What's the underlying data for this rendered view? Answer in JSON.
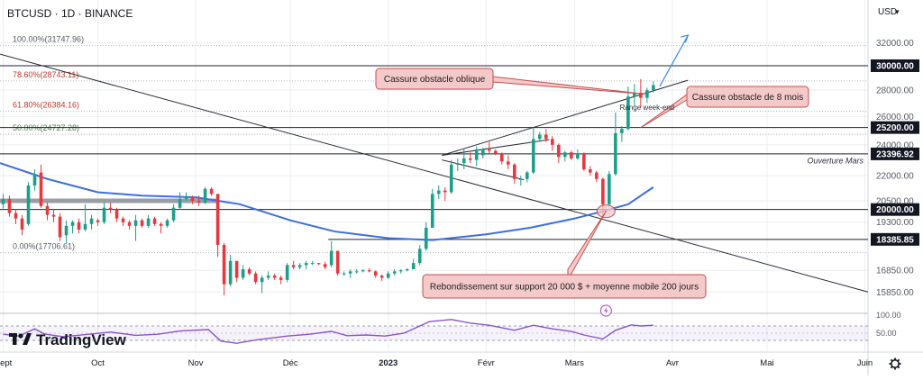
{
  "header": {
    "symbol": "BTCUSD",
    "timeframe": "1D",
    "exchange": "BINANCE",
    "title": "BTCUSD · 1D · BINANCE"
  },
  "toolbar": {
    "currency": "USD",
    "currency_caret": "▾",
    "settings_icon": "gear-icon"
  },
  "logo": {
    "text": "TradingView",
    "icon": "tradingview-logo-icon"
  },
  "colors": {
    "up": "#1e9e8a",
    "down": "#e5393f",
    "ma200": "#3d6fe0",
    "rsi": "#8a55c8",
    "callout_fill": "#f4c9c9",
    "callout_border": "#c45050",
    "arrow": "#3b8be8",
    "background": "#ffffff",
    "grid": "#eceef2"
  },
  "chart_data": {
    "type": "candlestick",
    "title": "BTCUSD · 1D · BINANCE",
    "y_unit": "USD",
    "y_axis_scale": "log",
    "y_ticks": [
      32000,
      30000,
      28000,
      26000,
      25200,
      24000,
      23396.92,
      22000,
      20500,
      20000,
      19300,
      18385.85,
      16850,
      15850
    ],
    "y_tick_labels": [
      "32000.00",
      "30000.00",
      "28000.00",
      "26000.00",
      "25200.00",
      "24000.00",
      "23396.92",
      "22000.00",
      "20500.00",
      "20000.00",
      "19300.00",
      "18385.85",
      "16850.00",
      "15850.00"
    ],
    "highlighted_levels": [
      30000,
      25200,
      23396.92,
      20000,
      18385.85
    ],
    "highlighted_level_labels": [
      "30000.00",
      "25200.00",
      "23396.92",
      "20000.00",
      "18385.85"
    ],
    "x_tick_labels": [
      "Sept",
      "Oct",
      "Nov",
      "Déc",
      "2023",
      "Févr",
      "Mars",
      "Avr",
      "Mai",
      "Juin"
    ],
    "x_tick_dates": [
      "2022-09-01",
      "2022-10-01",
      "2022-11-01",
      "2022-12-01",
      "2023-01-01",
      "2023-02-01",
      "2023-03-01",
      "2023-04-01",
      "2023-05-01",
      "2023-06-01"
    ],
    "x_range": [
      "2022-08-31",
      "2023-06-02"
    ],
    "candles": [
      [
        "2022-09-01",
        20300,
        20900,
        20050,
        20600
      ],
      [
        "2022-09-03",
        20600,
        20800,
        19600,
        19800
      ],
      [
        "2022-09-05",
        19800,
        20000,
        19200,
        19500
      ],
      [
        "2022-09-07",
        19500,
        19700,
        18600,
        18900
      ],
      [
        "2022-09-09",
        19200,
        21600,
        19100,
        21400
      ],
      [
        "2022-09-11",
        21400,
        22400,
        21100,
        22100
      ],
      [
        "2022-09-13",
        22200,
        22700,
        20100,
        20200
      ],
      [
        "2022-09-15",
        20200,
        20400,
        19400,
        19700
      ],
      [
        "2022-09-17",
        19700,
        20000,
        19300,
        19600
      ],
      [
        "2022-09-19",
        19600,
        19800,
        18300,
        18500
      ],
      [
        "2022-09-21",
        18600,
        19400,
        18200,
        19100
      ],
      [
        "2022-09-23",
        19100,
        19400,
        18700,
        19300
      ],
      [
        "2022-09-25",
        19300,
        19500,
        18700,
        18900
      ],
      [
        "2022-09-27",
        18900,
        20300,
        18800,
        19200
      ],
      [
        "2022-09-29",
        19200,
        19700,
        18900,
        19500
      ],
      [
        "2022-10-01",
        19400,
        19500,
        19100,
        19300
      ],
      [
        "2022-10-03",
        19300,
        20400,
        19200,
        20100
      ],
      [
        "2022-10-05",
        20100,
        20400,
        19800,
        20000
      ],
      [
        "2022-10-07",
        20000,
        20100,
        19300,
        19500
      ],
      [
        "2022-10-09",
        19500,
        19600,
        19100,
        19300
      ],
      [
        "2022-10-11",
        19300,
        19400,
        18900,
        19100
      ],
      [
        "2022-10-13",
        19100,
        19700,
        18300,
        19400
      ],
      [
        "2022-10-15",
        19400,
        19500,
        19000,
        19100
      ],
      [
        "2022-10-17",
        19100,
        19700,
        19000,
        19500
      ],
      [
        "2022-10-19",
        19500,
        19600,
        19100,
        19200
      ],
      [
        "2022-10-21",
        19200,
        19300,
        18700,
        19100
      ],
      [
        "2022-10-23",
        19100,
        19500,
        19000,
        19400
      ],
      [
        "2022-10-25",
        19400,
        20300,
        19300,
        20100
      ],
      [
        "2022-10-27",
        20100,
        21000,
        20000,
        20600
      ],
      [
        "2022-10-29",
        20600,
        21000,
        20500,
        20700
      ],
      [
        "2022-10-31",
        20700,
        20800,
        20300,
        20500
      ],
      [
        "2022-11-02",
        20500,
        20800,
        20200,
        20400
      ],
      [
        "2022-11-04",
        20400,
        21300,
        20300,
        21200
      ],
      [
        "2022-11-06",
        21200,
        21300,
        20800,
        20900
      ],
      [
        "2022-11-08",
        20900,
        20900,
        17500,
        18100
      ],
      [
        "2022-11-10",
        18100,
        18200,
        15700,
        16200
      ],
      [
        "2022-11-12",
        16200,
        17600,
        16100,
        17300
      ],
      [
        "2022-11-14",
        17300,
        17200,
        16300,
        16500
      ],
      [
        "2022-11-16",
        16500,
        17100,
        16400,
        16900
      ],
      [
        "2022-11-18",
        16900,
        17000,
        16600,
        16700
      ],
      [
        "2022-11-20",
        16700,
        16800,
        16200,
        16300
      ],
      [
        "2022-11-22",
        16300,
        16600,
        15800,
        16500
      ],
      [
        "2022-11-24",
        16500,
        16800,
        16400,
        16600
      ],
      [
        "2022-11-26",
        16600,
        16700,
        16400,
        16500
      ],
      [
        "2022-11-28",
        16500,
        16600,
        16200,
        16400
      ],
      [
        "2022-11-30",
        16400,
        17200,
        16300,
        17100
      ],
      [
        "2022-12-02",
        17100,
        17300,
        16900,
        17000
      ],
      [
        "2022-12-04",
        17000,
        17200,
        16900,
        17100
      ],
      [
        "2022-12-06",
        17100,
        17300,
        16900,
        17200
      ],
      [
        "2022-12-08",
        17200,
        17300,
        17100,
        17200
      ],
      [
        "2022-12-10",
        17200,
        17200,
        17100,
        17150
      ],
      [
        "2022-12-12",
        17150,
        17250,
        16900,
        17000
      ],
      [
        "2022-12-14",
        17100,
        18300,
        17000,
        17800
      ],
      [
        "2022-12-16",
        17800,
        17800,
        16600,
        16700
      ],
      [
        "2022-12-18",
        16700,
        16800,
        16600,
        16700
      ],
      [
        "2022-12-20",
        16700,
        16900,
        16500,
        16800
      ],
      [
        "2022-12-22",
        16800,
        16900,
        16700,
        16800
      ],
      [
        "2022-12-24",
        16800,
        16900,
        16750,
        16850
      ],
      [
        "2022-12-26",
        16850,
        16950,
        16750,
        16800
      ],
      [
        "2022-12-28",
        16800,
        16850,
        16500,
        16600
      ],
      [
        "2022-12-30",
        16600,
        16650,
        16350,
        16500
      ],
      [
        "2023-01-01",
        16500,
        16800,
        16450,
        16700
      ],
      [
        "2023-01-03",
        16700,
        16900,
        16600,
        16800
      ],
      [
        "2023-01-05",
        16800,
        16900,
        16700,
        16850
      ],
      [
        "2023-01-07",
        16850,
        16950,
        16800,
        16900
      ],
      [
        "2023-01-09",
        16900,
        17400,
        16900,
        17200
      ],
      [
        "2023-01-11",
        17200,
        18100,
        17100,
        17900
      ],
      [
        "2023-01-13",
        17900,
        19300,
        17800,
        19000
      ],
      [
        "2023-01-15",
        19000,
        21200,
        19000,
        20900
      ],
      [
        "2023-01-17",
        20900,
        21400,
        20600,
        21100
      ],
      [
        "2023-01-19",
        21100,
        21300,
        20500,
        21000
      ],
      [
        "2023-01-21",
        21000,
        23000,
        20900,
        22700
      ],
      [
        "2023-01-23",
        22700,
        23100,
        22300,
        22800
      ],
      [
        "2023-01-25",
        22800,
        23700,
        22400,
        23100
      ],
      [
        "2023-01-27",
        23100,
        23500,
        22800,
        23000
      ],
      [
        "2023-01-29",
        23000,
        23900,
        22600,
        23700
      ],
      [
        "2023-01-31",
        23300,
        23800,
        23100,
        23700
      ],
      [
        "2023-02-02",
        23700,
        24200,
        23400,
        23600
      ],
      [
        "2023-02-04",
        23600,
        23700,
        23300,
        23400
      ],
      [
        "2023-02-06",
        23400,
        23500,
        22700,
        22900
      ],
      [
        "2023-02-08",
        22900,
        23300,
        22400,
        22700
      ],
      [
        "2023-02-10",
        22700,
        22800,
        21500,
        21800
      ],
      [
        "2023-02-12",
        21800,
        22000,
        21400,
        21800
      ],
      [
        "2023-02-14",
        21800,
        22300,
        21600,
        22200
      ],
      [
        "2023-02-16",
        22200,
        25200,
        22100,
        24400
      ],
      [
        "2023-02-18",
        24400,
        24900,
        24200,
        24700
      ],
      [
        "2023-02-20",
        24700,
        25100,
        24200,
        24400
      ],
      [
        "2023-02-22",
        24400,
        24600,
        23600,
        24000
      ],
      [
        "2023-02-24",
        24000,
        24100,
        22800,
        23200
      ],
      [
        "2023-02-26",
        23200,
        23600,
        22900,
        23500
      ],
      [
        "2023-02-28",
        23500,
        23600,
        23000,
        23100
      ],
      [
        "2023-03-02",
        23100,
        23700,
        23000,
        23400
      ],
      [
        "2023-03-04",
        23400,
        23500,
        22300,
        22400
      ],
      [
        "2023-03-06",
        22400,
        22600,
        22000,
        22200
      ],
      [
        "2023-03-08",
        22200,
        22300,
        21600,
        21800
      ],
      [
        "2023-03-10",
        21800,
        21900,
        19600,
        20300
      ],
      [
        "2023-03-12",
        20300,
        22300,
        20200,
        22100
      ],
      [
        "2023-03-14",
        22100,
        26300,
        22000,
        24800
      ],
      [
        "2023-03-16",
        24800,
        25300,
        24200,
        25100
      ],
      [
        "2023-03-18",
        25100,
        28300,
        25000,
        27500
      ],
      [
        "2023-03-20",
        27500,
        28500,
        26800,
        27800
      ],
      [
        "2023-03-22",
        27800,
        28900,
        26700,
        27400
      ],
      [
        "2023-03-24",
        27400,
        28200,
        27000,
        28000
      ],
      [
        "2023-03-26",
        28000,
        28700,
        27800,
        28400
      ]
    ],
    "moving_average": {
      "name": "moyenne mobile 200 jours",
      "period": 200,
      "points": [
        [
          "2022-08-31",
          22800
        ],
        [
          "2022-09-15",
          21800
        ],
        [
          "2022-10-01",
          21000
        ],
        [
          "2022-10-15",
          20800
        ],
        [
          "2022-11-01",
          20700
        ],
        [
          "2022-11-15",
          20300
        ],
        [
          "2022-12-01",
          19400
        ],
        [
          "2022-12-15",
          18800
        ],
        [
          "2023-01-01",
          18450
        ],
        [
          "2023-01-15",
          18350
        ],
        [
          "2023-02-01",
          18650
        ],
        [
          "2023-02-15",
          19000
        ],
        [
          "2023-03-01",
          19500
        ],
        [
          "2023-03-10",
          19900
        ],
        [
          "2023-03-18",
          20300
        ],
        [
          "2023-03-26",
          21300
        ]
      ]
    },
    "fibonacci": {
      "levels": [
        {
          "ratio": "100.00%",
          "price": 31747.96,
          "label": "100.00%(31747.96)"
        },
        {
          "ratio": "78.60%",
          "price": 28743.11,
          "label": "78.60%(28743.11)"
        },
        {
          "ratio": "61.80%",
          "price": 26384.16,
          "label": "61.80%(26384.16)"
        },
        {
          "ratio": "50.00%",
          "price": 24727.28,
          "label": "50.00%(24727.28)"
        },
        {
          "ratio": "0.00%",
          "price": 17706.61,
          "label": "0.00%(17706.61)"
        }
      ]
    },
    "horizontal_lines": [
      {
        "price": 30000
      },
      {
        "price": 25200
      },
      {
        "price": 23396.92,
        "label": "Ouverture Mars"
      },
      {
        "price": 20000
      },
      {
        "price": 18385.85,
        "from": "2022-12-13",
        "to": "2023-06-02"
      },
      {
        "price": 20500,
        "from": "2022-08-31",
        "to": "2022-11-08",
        "style": "thick-gray"
      }
    ],
    "trendlines": [
      {
        "from": [
          "2022-08-31",
          31000
        ],
        "to": [
          "2023-06-02",
          15850
        ],
        "name": "descending-resistance"
      },
      {
        "from": [
          "2023-01-18",
          23300
        ],
        "to": [
          "2023-04-06",
          28800
        ],
        "name": "oblique-resistance"
      },
      {
        "from": [
          "2023-01-18",
          23300
        ],
        "to": [
          "2023-02-21",
          24350
        ],
        "name": "range-upper"
      },
      {
        "from": [
          "2023-01-18",
          23000
        ],
        "to": [
          "2023-02-13",
          21750
        ],
        "name": "range-lower"
      }
    ],
    "annotations": [
      {
        "text": "Cassure obstacle oblique",
        "type": "callout",
        "target": [
          "2023-03-23",
          27700
        ]
      },
      {
        "text": "Cassure obstacle de 8 mois",
        "type": "callout",
        "target": [
          "2023-03-22",
          25200
        ]
      },
      {
        "text": "Range week-end",
        "type": "label",
        "at": [
          "2023-03-24",
          26700
        ]
      },
      {
        "text": "Rebondissement sur support 20 000 $ + moyenne mobile 200 jours",
        "type": "callout",
        "target": [
          "2023-03-11",
          19900
        ]
      },
      {
        "text": "Ouverture Mars",
        "type": "label",
        "at": [
          "2023-05-12",
          23000
        ]
      }
    ],
    "target_arrow": {
      "from": [
        "2023-03-28",
        28300
      ],
      "to": [
        "2023-04-06",
        32700
      ]
    },
    "rsi": {
      "name": "RSI",
      "ylim": [
        0,
        100
      ],
      "ticks": [
        100,
        50
      ],
      "tick_labels": [
        "100.00",
        "50.00"
      ],
      "bands": [
        30,
        70
      ],
      "points": [
        [
          "2022-09-01",
          47
        ],
        [
          "2022-09-06",
          42
        ],
        [
          "2022-09-11",
          62
        ],
        [
          "2022-09-14",
          48
        ],
        [
          "2022-09-20",
          40
        ],
        [
          "2022-09-27",
          46
        ],
        [
          "2022-10-05",
          53
        ],
        [
          "2022-10-13",
          44
        ],
        [
          "2022-10-20",
          47
        ],
        [
          "2022-10-27",
          56
        ],
        [
          "2022-11-05",
          60
        ],
        [
          "2022-11-09",
          28
        ],
        [
          "2022-11-14",
          22
        ],
        [
          "2022-11-20",
          31
        ],
        [
          "2022-11-30",
          42
        ],
        [
          "2022-12-07",
          47
        ],
        [
          "2022-12-14",
          55
        ],
        [
          "2022-12-19",
          43
        ],
        [
          "2022-12-25",
          45
        ],
        [
          "2022-12-31",
          42
        ],
        [
          "2023-01-06",
          50
        ],
        [
          "2023-01-14",
          82
        ],
        [
          "2023-01-21",
          88
        ],
        [
          "2023-01-27",
          78
        ],
        [
          "2023-02-02",
          72
        ],
        [
          "2023-02-10",
          58
        ],
        [
          "2023-02-16",
          72
        ],
        [
          "2023-02-22",
          62
        ],
        [
          "2023-02-28",
          55
        ],
        [
          "2023-03-04",
          45
        ],
        [
          "2023-03-10",
          34
        ],
        [
          "2023-03-14",
          58
        ],
        [
          "2023-03-19",
          73
        ],
        [
          "2023-03-22",
          70
        ],
        [
          "2023-03-26",
          72
        ]
      ]
    }
  }
}
